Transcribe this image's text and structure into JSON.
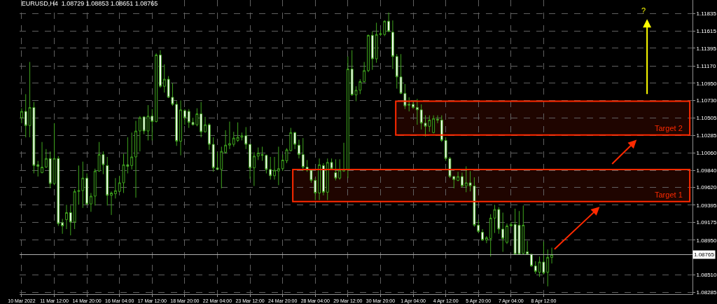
{
  "chart_data": {
    "type": "candlestick",
    "title": "EURUSD,H4  1.08729 1.08853 1.08651 1.08765",
    "annotations": [
      "?"
    ],
    "categories": [
      "10 Mar 2022",
      null,
      null,
      null,
      null,
      null,
      null,
      null,
      "11 Mar 12:00",
      null,
      null,
      null,
      null,
      null,
      null,
      null,
      "14 Mar 20:00",
      null,
      null,
      null,
      null,
      null,
      null,
      null,
      "16 Mar 04:00",
      null,
      null,
      null,
      null,
      null,
      null,
      null,
      "17 Mar 12:00",
      null,
      null,
      null,
      null,
      null,
      null,
      null,
      "18 Mar 20:00",
      null,
      null,
      null,
      null,
      null,
      null,
      null,
      "22 Mar 04:00",
      null,
      null,
      null,
      null,
      null,
      null,
      null,
      "23 Mar 12:00",
      null,
      null,
      null,
      null,
      null,
      null,
      null,
      "24 Mar 20:00",
      null,
      null,
      null,
      null,
      null,
      null,
      null,
      "28 Mar 04:00",
      null,
      null,
      null,
      null,
      null,
      null,
      null,
      "29 Mar 12:00",
      null,
      null,
      null,
      null,
      null,
      null,
      null,
      "30 Mar 20:00",
      null,
      null,
      null,
      null,
      null,
      null,
      null,
      "1 Apr 04:00",
      null,
      null,
      null,
      null,
      null,
      null,
      null,
      "4 Apr 12:00",
      null,
      null,
      null,
      null,
      null,
      null,
      null,
      "5 Apr 20:00",
      null,
      null,
      null,
      null,
      null,
      null,
      null,
      "7 Apr 04:00",
      null,
      null,
      null,
      null,
      null,
      null,
      null,
      "8 Apr 12:00",
      null,
      null,
      null,
      null,
      null,
      null,
      null,
      null,
      null,
      null,
      null,
      null,
      null,
      null,
      null,
      null,
      null,
      null,
      null,
      null,
      null,
      null,
      null,
      null,
      null,
      null,
      null,
      null,
      null,
      null,
      null,
      null,
      null,
      null,
      null,
      null
    ],
    "ohlc": [
      [
        1.1051,
        1.1063,
        1.1044,
        1.1059
      ],
      [
        1.1059,
        1.1081,
        1.1026,
        1.1041
      ],
      [
        1.1041,
        1.1122,
        1.1026,
        1.1064
      ],
      [
        1.1064,
        1.1071,
        1.098,
        1.099
      ],
      [
        1.0991,
        1.0996,
        1.0976,
        1.0989
      ],
      [
        1.0981,
        1.102,
        1.098,
        1.0988
      ],
      [
        1.0988,
        1.1011,
        1.0987,
        1.0999
      ],
      [
        1.0999,
        1.1008,
        1.0961,
        1.0967
      ],
      [
        1.0967,
        1.1044,
        1.0965,
        1.0999
      ],
      [
        1.0999,
        1.1002,
        1.0913,
        1.0916
      ],
      [
        1.0917,
        1.0922,
        1.0903,
        1.0913
      ],
      [
        1.0921,
        1.094,
        1.0909,
        1.093
      ],
      [
        1.093,
        1.0939,
        1.0901,
        1.0918
      ],
      [
        1.0918,
        1.096,
        1.0909,
        1.0957
      ],
      [
        1.0957,
        1.099,
        1.094,
        1.0958
      ],
      [
        1.0958,
        1.0995,
        1.0936,
        1.0974
      ],
      [
        1.0974,
        1.098,
        1.094,
        1.0941
      ],
      [
        1.0941,
        1.0955,
        1.0931,
        1.0951
      ],
      [
        1.0951,
        1.0986,
        1.0939,
        1.0983
      ],
      [
        1.0983,
        1.102,
        1.0982,
        1.1004
      ],
      [
        1.1004,
        1.1008,
        1.0979,
        1.0991
      ],
      [
        1.099,
        1.1001,
        1.0939,
        1.0952
      ],
      [
        1.0952,
        1.0957,
        1.0927,
        1.0955
      ],
      [
        1.0954,
        1.0974,
        1.0948,
        1.0958
      ],
      [
        1.0957,
        1.0977,
        1.0956,
        1.0968
      ],
      [
        1.0968,
        1.1005,
        1.0955,
        1.0991
      ],
      [
        1.0991,
        1.1026,
        1.098,
        1.0989
      ],
      [
        1.099,
        1.1032,
        1.0985,
        1.1001
      ],
      [
        1.1001,
        1.1047,
        1.0949,
        1.1034
      ],
      [
        1.1034,
        1.1053,
        1.1008,
        1.1051
      ],
      [
        1.1052,
        1.1053,
        1.103,
        1.1034
      ],
      [
        1.1034,
        1.1067,
        1.1022,
        1.1053
      ],
      [
        1.1053,
        1.1062,
        1.1022,
        1.1046
      ],
      [
        1.1046,
        1.1133,
        1.1045,
        1.1131
      ],
      [
        1.1131,
        1.1137,
        1.1089,
        1.1091
      ],
      [
        1.1091,
        1.1119,
        1.1083,
        1.11
      ],
      [
        1.11,
        1.1104,
        1.1076,
        1.1077
      ],
      [
        1.1077,
        1.1095,
        1.1066,
        1.1068
      ],
      [
        1.1068,
        1.1072,
        1.1015,
        1.1021
      ],
      [
        1.1021,
        1.1073,
        1.1003,
        1.1061
      ],
      [
        1.106,
        1.1062,
        1.1042,
        1.1051
      ],
      [
        1.1059,
        1.1062,
        1.1038,
        1.1045
      ],
      [
        1.1045,
        1.1051,
        1.1041,
        1.1042
      ],
      [
        1.1042,
        1.1063,
        1.104,
        1.1056
      ],
      [
        1.1056,
        1.1071,
        1.1026,
        1.1033
      ],
      [
        1.1033,
        1.1052,
        1.1032,
        1.1042
      ],
      [
        1.1042,
        1.1044,
        1.101,
        1.1017
      ],
      [
        1.1017,
        1.1026,
        1.0982,
        1.0987
      ],
      [
        1.0987,
        1.1007,
        1.0984,
        1.0985
      ],
      [
        1.0985,
        1.1014,
        1.0961,
        1.1008
      ],
      [
        1.1007,
        1.1035,
        1.1005,
        1.1016
      ],
      [
        1.1016,
        1.1046,
        1.1011,
        1.1018
      ],
      [
        1.1017,
        1.1033,
        1.1014,
        1.1025
      ],
      [
        1.1022,
        1.1045,
        1.102,
        1.1026
      ],
      [
        1.1026,
        1.1032,
        1.1022,
        1.1028
      ],
      [
        1.1028,
        1.1039,
        1.1011,
        1.1017
      ],
      [
        1.1017,
        1.1017,
        1.0973,
        1.0987
      ],
      [
        1.0987,
        1.1007,
        1.0964,
        1.1002
      ],
      [
        1.1002,
        1.1013,
        1.0997,
        1.1006
      ],
      [
        1.1004,
        1.1014,
        1.0996,
        1.1003
      ],
      [
        1.1003,
        1.1004,
        1.098,
        1.0985
      ],
      [
        1.0985,
        1.1001,
        1.0972,
        1.0977
      ],
      [
        1.0977,
        1.1001,
        1.0972,
        1.0984
      ],
      [
        1.0983,
        1.1014,
        1.0965,
        1.0986
      ],
      [
        1.0986,
        1.1004,
        1.0983,
        1.0997
      ],
      [
        1.0996,
        1.1012,
        1.0993,
        1.101
      ],
      [
        1.1009,
        1.1038,
        1.1008,
        1.1032
      ],
      [
        1.1032,
        1.1033,
        1.1011,
        1.1017
      ],
      [
        1.1016,
        1.1023,
        1.0999,
        1.1004
      ],
      [
        1.1004,
        1.1025,
        1.0983,
        1.0988
      ],
      [
        1.0988,
        1.0997,
        1.0982,
        1.0984
      ],
      [
        1.0984,
        1.0984,
        1.0968,
        1.0971
      ],
      [
        1.0971,
        1.0974,
        1.0946,
        1.0955
      ],
      [
        1.0955,
        1.0999,
        1.0946,
        1.0991
      ],
      [
        1.099,
        1.0993,
        1.0952,
        1.0956
      ],
      [
        1.0956,
        1.0999,
        1.0946,
        1.0994
      ],
      [
        1.0994,
        1.0999,
        1.0984,
        1.0986
      ],
      [
        1.0981,
        1.0998,
        1.0971,
        1.0974
      ],
      [
        1.0974,
        1.0998,
        1.0972,
        1.0984
      ],
      [
        1.0983,
        1.1019,
        1.0982,
        1.0985
      ],
      [
        1.0985,
        1.1129,
        1.0974,
        1.1113
      ],
      [
        1.1113,
        1.1137,
        1.1079,
        1.108
      ],
      [
        1.108,
        1.1091,
        1.1072,
        1.1086
      ],
      [
        1.1086,
        1.11,
        1.1081,
        1.1097
      ],
      [
        1.1097,
        1.1122,
        1.1096,
        1.1111
      ],
      [
        1.1111,
        1.1157,
        1.1109,
        1.1156
      ],
      [
        1.1156,
        1.1161,
        1.1112,
        1.1126
      ],
      [
        1.1126,
        1.1172,
        1.1121,
        1.1157
      ],
      [
        1.1157,
        1.1163,
        1.1155,
        1.1158
      ],
      [
        1.1157,
        1.1175,
        1.1155,
        1.1174
      ],
      [
        1.1174,
        1.1185,
        1.116,
        1.1161
      ],
      [
        1.116,
        1.1175,
        1.1113,
        1.1129
      ],
      [
        1.1129,
        1.1132,
        1.1088,
        1.1103
      ],
      [
        1.1103,
        1.1132,
        1.1081,
        1.1082
      ],
      [
        1.1082,
        1.1094,
        1.1062,
        1.1066
      ],
      [
        1.1068,
        1.1077,
        1.1059,
        1.1067
      ],
      [
        1.1068,
        1.1073,
        1.1062,
        1.1064
      ],
      [
        1.1064,
        1.1075,
        1.1042,
        1.1061
      ],
      [
        1.1061,
        1.1068,
        1.1036,
        1.1044
      ],
      [
        1.1044,
        1.1054,
        1.1027,
        1.104
      ],
      [
        1.104,
        1.1054,
        1.1033,
        1.1048
      ],
      [
        1.1032,
        1.1054,
        1.1031,
        1.105
      ],
      [
        1.1049,
        1.1054,
        1.1044,
        1.1048
      ],
      [
        1.1048,
        1.1054,
        1.102,
        1.1022
      ],
      [
        1.1022,
        1.1026,
        1.0996,
        1.0999
      ],
      [
        1.0999,
        1.1001,
        1.0974,
        1.0976
      ],
      [
        1.0976,
        1.0977,
        1.0961,
        1.0972
      ],
      [
        1.0971,
        1.0982,
        1.097,
        1.0976
      ],
      [
        1.0976,
        1.0981,
        1.0962,
        1.0964
      ],
      [
        1.0964,
        1.0989,
        1.0956,
        1.0968
      ],
      [
        1.0968,
        1.0983,
        1.0957,
        1.0964
      ],
      [
        1.0964,
        1.0975,
        1.0912,
        1.0914
      ],
      [
        1.0914,
        1.0921,
        1.0904,
        1.0906
      ],
      [
        1.0905,
        1.0909,
        1.0894,
        1.0895
      ],
      [
        1.0895,
        1.09,
        1.0891,
        1.0898
      ],
      [
        1.0897,
        1.0928,
        1.0874,
        1.0923
      ],
      [
        1.0923,
        1.094,
        1.0904,
        1.0934
      ],
      [
        1.0934,
        1.0937,
        1.0903,
        1.0909
      ],
      [
        1.0909,
        1.093,
        1.088,
        1.0897
      ],
      [
        1.0892,
        1.0916,
        1.089,
        1.0913
      ],
      [
        1.0913,
        1.0918,
        1.0912,
        1.0915
      ],
      [
        1.0915,
        1.0935,
        1.0876,
        1.0877
      ],
      [
        1.0914,
        1.0932,
        1.0876,
        1.0877
      ],
      [
        1.0878,
        1.0939,
        1.0877,
        1.0914
      ],
      [
        1.088,
        1.0894,
        1.0876,
        1.0877
      ],
      [
        1.0877,
        1.0877,
        1.0861,
        1.0862
      ],
      [
        1.0862,
        1.0868,
        1.0852,
        1.0855
      ],
      [
        1.0854,
        1.0874,
        1.0848,
        1.0867
      ],
      [
        1.0867,
        1.0893,
        1.0851,
        1.0853
      ],
      [
        1.0854,
        1.0883,
        1.0836,
        1.0873
      ],
      [
        1.08729,
        1.08853,
        1.08651,
        1.08765
      ],
      null,
      null,
      null,
      null,
      null,
      null,
      null,
      null,
      null,
      null,
      null,
      null,
      null,
      null,
      null,
      null,
      null,
      null,
      null,
      null,
      null,
      null,
      null,
      null,
      null,
      null,
      null,
      null,
      null,
      null,
      null,
      null,
      null,
      null
    ],
    "color": "#3fa51e",
    "ylim": [
      1.0826,
      1.1201
    ],
    "yticks": [
      1.11835,
      1.11615,
      1.11395,
      {
        "value": 1.1117,
        "label": "1.11170"
      },
      {
        "value": 1.1095,
        "label": "1.10950"
      },
      {
        "value": 1.1073,
        "label": "1.10730"
      },
      1.10505,
      1.10285,
      {
        "value": 1.1006,
        "label": "1.10060"
      },
      {
        "value": 1.0984,
        "label": "1.09840"
      },
      {
        "value": 1.0962,
        "label": "1.09620"
      },
      1.09395,
      1.09175,
      {
        "value": 1.0895,
        "label": "1.08950"
      },
      {
        "value": 1.0851,
        "label": "1.08510"
      },
      1.08285
    ],
    "grid": true,
    "ref_lines": [
      {
        "axis": "y",
        "value": 1.08765,
        "label": "1.08765",
        "color": "#b4b4b4",
        "line_style": "solid"
      }
    ],
    "bands": [
      {
        "axis": "y",
        "from": 1.0944,
        "to": 1.0985,
        "label": "Target 1",
        "color": "#ff2a00"
      },
      {
        "axis": "y",
        "from": 1.1029,
        "to": 1.1072,
        "label": "Target 2",
        "color": "#ff2a00"
      }
    ]
  }
}
